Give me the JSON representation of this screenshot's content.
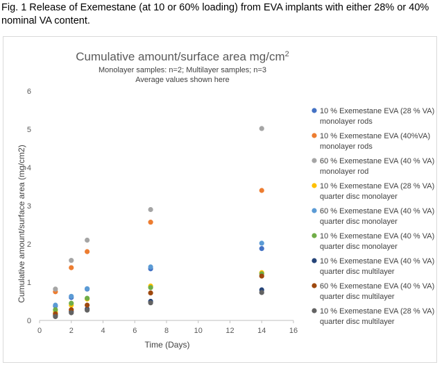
{
  "caption": "Fig. 1 Release of Exemestane (at 10 or 60% loading) from EVA implants with either 28% or 40% nominal VA content.",
  "chart_data": {
    "type": "scatter",
    "title": "Cumulative amount/surface area mg/cm",
    "title_sup": "2",
    "subtitle": [
      "Monolayer samples: n=2; Multilayer samples; n=3",
      "Average values shown here"
    ],
    "xlabel": "Time (Days)",
    "ylabel": "Cumulative amount/surface area (mg/cm2)",
    "xlim": [
      0,
      16
    ],
    "ylim": [
      0,
      6
    ],
    "xticks": [
      0,
      2,
      4,
      6,
      8,
      10,
      12,
      14,
      16
    ],
    "yticks": [
      0,
      1,
      2,
      3,
      4,
      5,
      6
    ],
    "grid": false,
    "legend_position": "right",
    "series": [
      {
        "name": "10 % Exemestane EVA (28 % VA) monolayer rods",
        "legend_lines": [
          "10 % Exemestane EVA (28 % VA)",
          "monolayer rods"
        ],
        "color": "#4472C4",
        "x": [
          1,
          2,
          3,
          7,
          14
        ],
        "y": [
          0.38,
          0.6,
          0.82,
          1.35,
          1.88
        ]
      },
      {
        "name": "10 % Exemestane EVA (40%VA) monolayer rods",
        "legend_lines": [
          "10 % Exemestane EVA (40%VA)",
          "monolayer rods"
        ],
        "color": "#ED7D31",
        "x": [
          1,
          2,
          3,
          7,
          14
        ],
        "y": [
          0.75,
          1.38,
          1.8,
          2.57,
          3.4
        ]
      },
      {
        "name": "60 % Exemestane EVA (40 % VA) monolayer rod",
        "legend_lines": [
          "60 % Exemestane EVA (40 % VA)",
          "monolayer rod"
        ],
        "color": "#A5A5A5",
        "x": [
          1,
          2,
          3,
          7,
          14
        ],
        "y": [
          0.82,
          1.57,
          2.1,
          2.9,
          5.02
        ]
      },
      {
        "name": "10 % Exemestane EVA (28 % VA) quarter disc monolayer",
        "legend_lines": [
          "10 % Exemestane EVA (28 % VA)",
          "quarter disc monolayer"
        ],
        "color": "#FFC000",
        "x": [
          1,
          2,
          3,
          7,
          14
        ],
        "y": [
          0.22,
          0.4,
          0.56,
          0.9,
          1.25
        ]
      },
      {
        "name": "60 % Exemestane EVA (40 % VA) quarter disc monolayer",
        "legend_lines": [
          "60 % Exemestane EVA (40 % VA)",
          "quarter disc monolayer"
        ],
        "color": "#5B9BD5",
        "x": [
          1,
          2,
          3,
          7,
          14
        ],
        "y": [
          0.4,
          0.63,
          0.83,
          1.4,
          2.02
        ]
      },
      {
        "name": "10 % Exemestane EVA (40 % VA) quarter disc monolayer",
        "legend_lines": [
          "10 % Exemestane EVA (40 % VA)",
          "quarter disc monolayer"
        ],
        "color": "#70AD47",
        "x": [
          1,
          2,
          3,
          7,
          14
        ],
        "y": [
          0.28,
          0.45,
          0.58,
          0.86,
          1.22
        ]
      },
      {
        "name": "10 % Exemestane EVA (40 % VA) quarter disc multilayer",
        "legend_lines": [
          "10 % Exemestane EVA (40 % VA)",
          "quarter disc multilayer"
        ],
        "color": "#264478",
        "x": [
          1,
          2,
          3,
          7,
          14
        ],
        "y": [
          0.13,
          0.23,
          0.3,
          0.5,
          0.8
        ]
      },
      {
        "name": "60 % Exemestane EVA (40 % VA) quarter disc multilayer",
        "legend_lines": [
          "60 % Exemestane EVA (40 % VA)",
          "quarter disc multilayer"
        ],
        "color": "#9E480E",
        "x": [
          1,
          2,
          3,
          7,
          14
        ],
        "y": [
          0.17,
          0.28,
          0.4,
          0.72,
          1.16
        ]
      },
      {
        "name": "10 % Exemestane EVA (28 % VA) quarter disc multilayer",
        "legend_lines": [
          "10 % Exemestane EVA (28 % VA)",
          "quarter disc multilayer"
        ],
        "color": "#636363",
        "x": [
          1,
          2,
          3,
          7,
          14
        ],
        "y": [
          0.1,
          0.2,
          0.27,
          0.46,
          0.73
        ]
      }
    ]
  }
}
